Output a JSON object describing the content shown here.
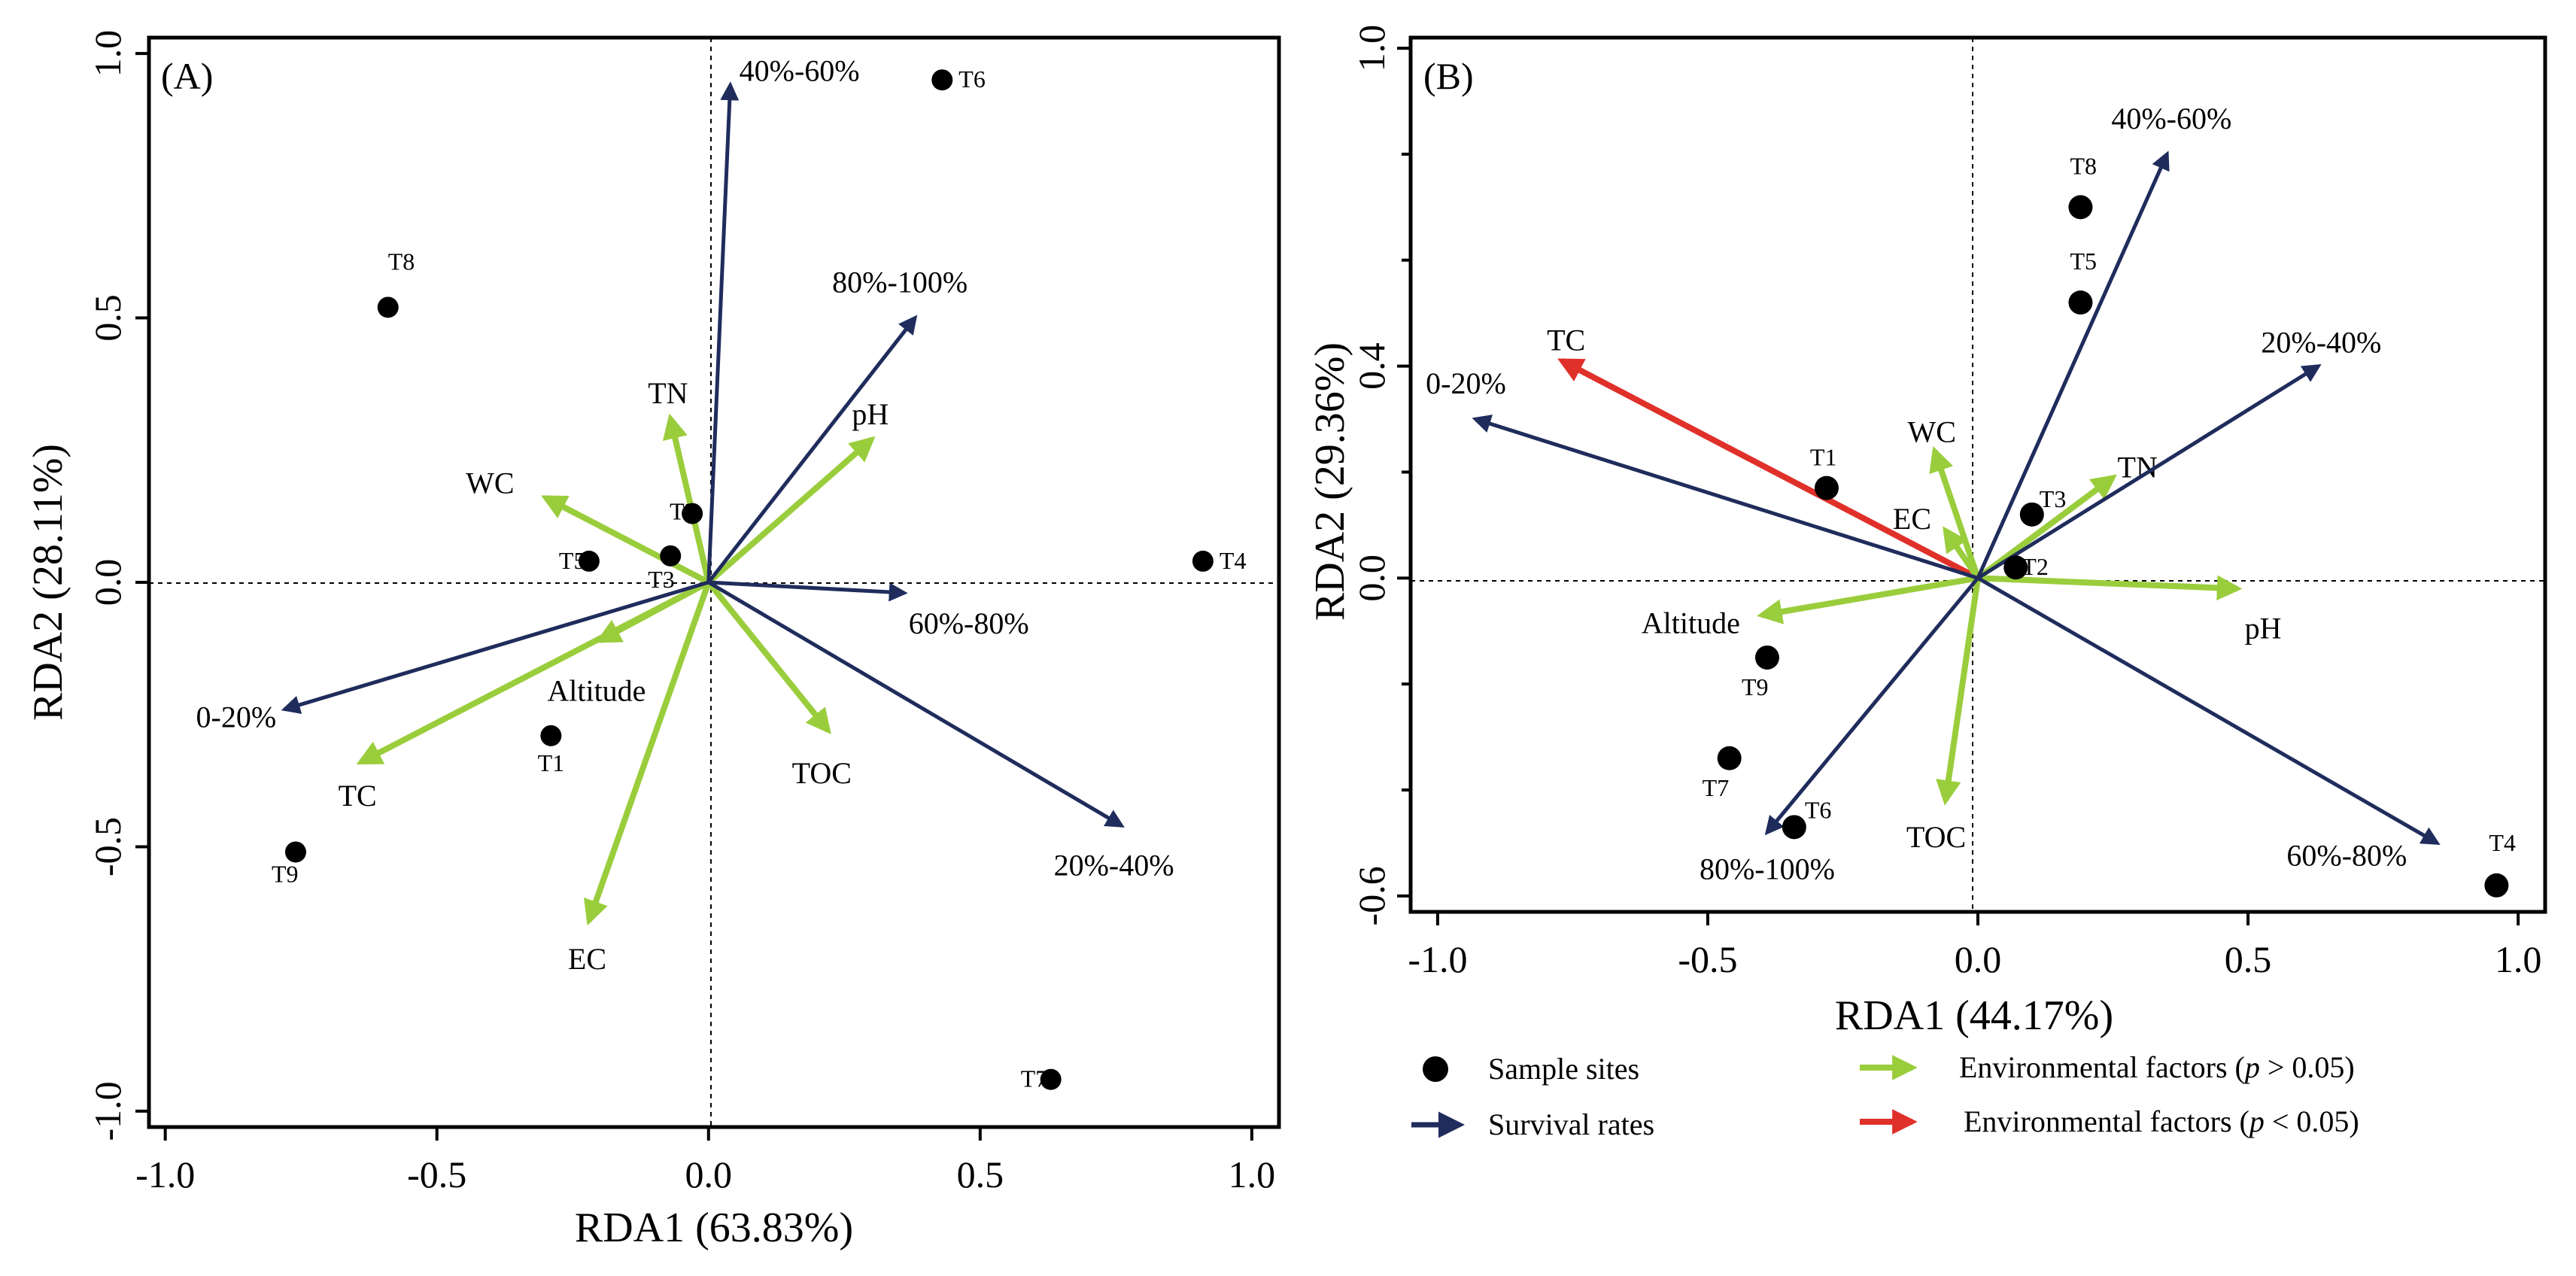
{
  "colors": {
    "survival": "#1f2c5c",
    "env_ns": "#9acd3c",
    "env_sig": "#e0302a",
    "axis": "#000000"
  },
  "legend": {
    "sample_sites": "Sample sites",
    "survival_rates": "Survival rates",
    "env_ns_prefix": "Environmental factors (",
    "env_ns_p": "p",
    "env_ns_suffix": " > 0.05)",
    "env_sig_prefix": "Environmental factors (",
    "env_sig_p": "p",
    "env_sig_suffix": " < 0.05)"
  },
  "chart_data": [
    {
      "type": "scatter",
      "panel_label": "(A)",
      "xlabel": "RDA1 (63.83%)",
      "ylabel": "RDA2 (28.11%)",
      "xlim": [
        -1.03,
        1.05
      ],
      "ylim": [
        -1.03,
        1.03
      ],
      "xticks": [
        -1.0,
        -0.5,
        0.0,
        0.5,
        1.0
      ],
      "xtick_labels": [
        "-1.0",
        "-0.5",
        "0.0",
        "0.5",
        "1.0"
      ],
      "yticks": [
        -1.0,
        -0.5,
        0.0,
        0.5,
        1.0
      ],
      "ytick_labels": [
        "-1.0",
        "-0.5",
        "0.0",
        "0.5",
        "1.0"
      ],
      "sites": [
        {
          "name": "T1",
          "x": -0.29,
          "y": -0.29
        },
        {
          "name": "T2",
          "x": -0.03,
          "y": 0.13
        },
        {
          "name": "T3",
          "x": -0.07,
          "y": 0.05
        },
        {
          "name": "T4",
          "x": 0.91,
          "y": 0.04
        },
        {
          "name": "T5",
          "x": -0.22,
          "y": 0.04
        },
        {
          "name": "T6",
          "x": 0.43,
          "y": 0.95
        },
        {
          "name": "T7",
          "x": 0.63,
          "y": -0.94
        },
        {
          "name": "T8",
          "x": -0.59,
          "y": 0.52
        },
        {
          "name": "T9",
          "x": -0.76,
          "y": -0.51
        }
      ],
      "survival_vectors": [
        {
          "name": "0-20%",
          "x": -0.78,
          "y": -0.24
        },
        {
          "name": "20%-40%",
          "x": 0.76,
          "y": -0.46
        },
        {
          "name": "40%-60%",
          "x": 0.04,
          "y": 0.94
        },
        {
          "name": "60%-80%",
          "x": 0.36,
          "y": -0.02
        },
        {
          "name": "80%-100%",
          "x": 0.38,
          "y": 0.5
        }
      ],
      "env_vectors": [
        {
          "name": "Altitude",
          "x": -0.2,
          "y": -0.11,
          "significant": false
        },
        {
          "name": "TC",
          "x": -0.64,
          "y": -0.34,
          "significant": false
        },
        {
          "name": "TN",
          "x": -0.07,
          "y": 0.31,
          "significant": false
        },
        {
          "name": "WC",
          "x": -0.3,
          "y": 0.16,
          "significant": false
        },
        {
          "name": "pH",
          "x": 0.3,
          "y": 0.27,
          "significant": false
        },
        {
          "name": "TOC",
          "x": 0.22,
          "y": -0.28,
          "significant": false
        },
        {
          "name": "EC",
          "x": -0.22,
          "y": -0.64,
          "significant": false
        }
      ]
    },
    {
      "type": "scatter",
      "panel_label": "(B)",
      "xlabel": "RDA1 (44.17%)",
      "ylabel": "RDA2 (29.36%)",
      "xlim": [
        -1.05,
        1.05
      ],
      "ylim": [
        -0.63,
        1.02
      ],
      "xticks": [
        -1.0,
        -0.5,
        0.0,
        0.5,
        1.0
      ],
      "xtick_labels": [
        "-1.0",
        "-0.5",
        "0.0",
        "0.5",
        "1.0"
      ],
      "yticks": [
        -0.6,
        0.0,
        0.4,
        1.0
      ],
      "ytick_labels": [
        "-0.6",
        "0.0",
        "0.4",
        "1.0"
      ],
      "minor_yticks": [
        -0.4,
        -0.2,
        0.2,
        0.6,
        0.8
      ],
      "sites": [
        {
          "name": "T1",
          "x": -0.28,
          "y": 0.17
        },
        {
          "name": "T2",
          "x": 0.07,
          "y": 0.02
        },
        {
          "name": "T3",
          "x": 0.1,
          "y": 0.12
        },
        {
          "name": "T4",
          "x": 0.96,
          "y": -0.58
        },
        {
          "name": "T5",
          "x": 0.19,
          "y": 0.52
        },
        {
          "name": "T6",
          "x": -0.34,
          "y": -0.47
        },
        {
          "name": "T7",
          "x": -0.46,
          "y": -0.34
        },
        {
          "name": "T8",
          "x": 0.19,
          "y": 0.7
        },
        {
          "name": "T9",
          "x": -0.39,
          "y": -0.15
        }
      ],
      "survival_vectors": [
        {
          "name": "0-20%",
          "x": -0.93,
          "y": 0.3
        },
        {
          "name": "20%-40%",
          "x": 0.63,
          "y": 0.4
        },
        {
          "name": "40%-60%",
          "x": 0.35,
          "y": 0.8
        },
        {
          "name": "60%-80%",
          "x": 0.85,
          "y": -0.5
        },
        {
          "name": "80%-100%",
          "x": -0.39,
          "y": -0.48
        }
      ],
      "env_vectors": [
        {
          "name": "TC",
          "x": -0.77,
          "y": 0.41,
          "significant": true
        },
        {
          "name": "WC",
          "x": -0.08,
          "y": 0.24,
          "significant": false
        },
        {
          "name": "EC",
          "x": -0.06,
          "y": 0.09,
          "significant": false
        },
        {
          "name": "TN",
          "x": 0.25,
          "y": 0.19,
          "significant": false
        },
        {
          "name": "pH",
          "x": 0.48,
          "y": -0.02,
          "significant": false
        },
        {
          "name": "Altitude",
          "x": -0.4,
          "y": -0.07,
          "significant": false
        },
        {
          "name": "TOC",
          "x": -0.06,
          "y": -0.42,
          "significant": false
        }
      ]
    }
  ]
}
